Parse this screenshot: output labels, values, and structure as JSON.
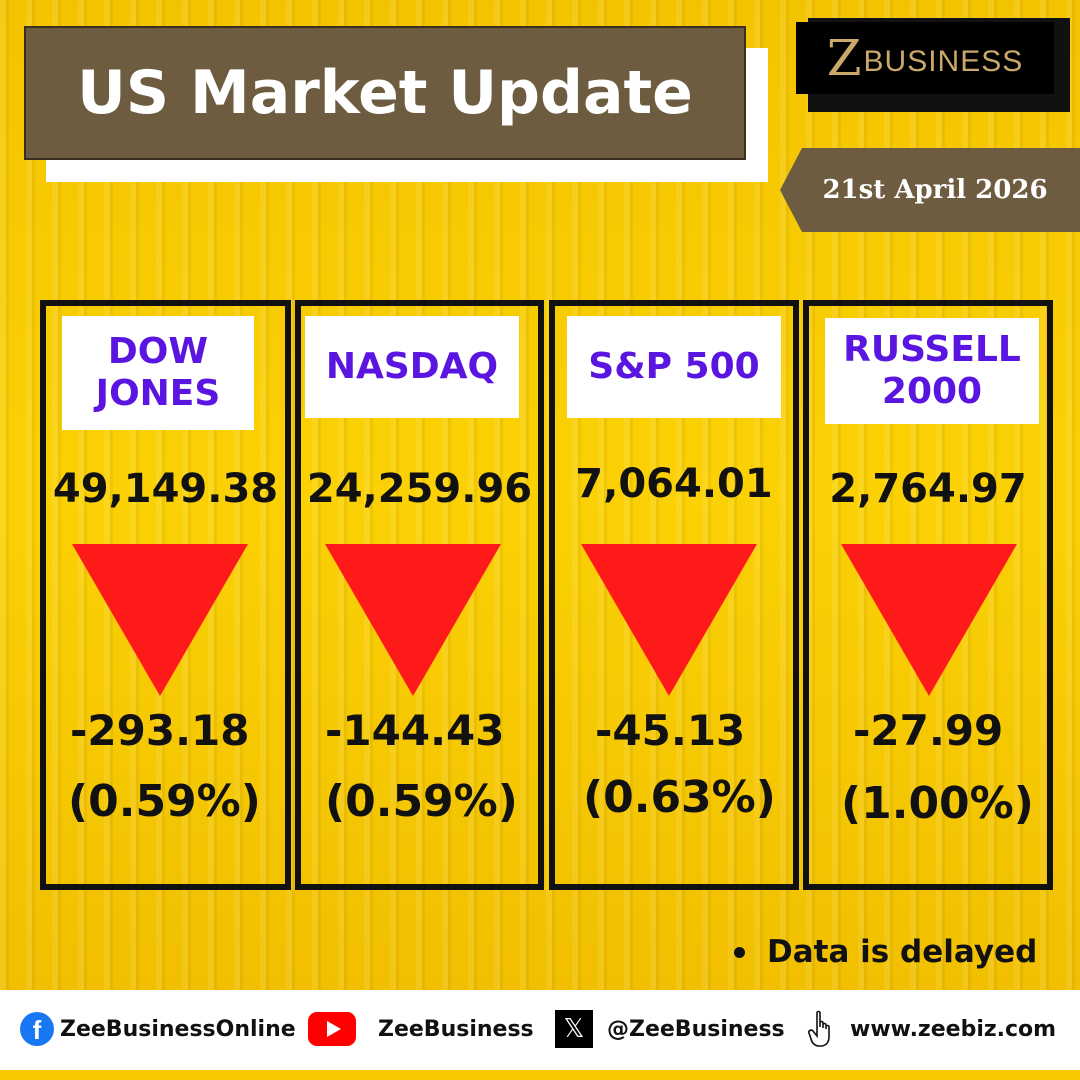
{
  "header": {
    "title": "US Market Update",
    "logo_z": "Z",
    "logo_text": "BUSINESS",
    "date": "21st April 2026"
  },
  "indices": [
    {
      "label": "DOW\nJONES",
      "value": "49,149.38",
      "change": "-293.18",
      "pct": "(0.59%)",
      "direction": "down"
    },
    {
      "label": "NASDAQ",
      "value": "24,259.96",
      "change": "-144.43",
      "pct": "(0.59%)",
      "direction": "down"
    },
    {
      "label": "S&P 500",
      "value": "7,064.01",
      "change": "-45.13",
      "pct": "(0.63%)",
      "direction": "down"
    },
    {
      "label": "RUSSELL\n2000",
      "value": "2,764.97",
      "change": "-27.99",
      "pct": "(1.00%)",
      "direction": "down"
    }
  ],
  "note": "Data is delayed",
  "footer": {
    "facebook": "ZeeBusinessOnline",
    "youtube": "ZeeBusiness",
    "x": "@ZeeBusiness",
    "website": "www.zeebiz.com"
  },
  "colors": {
    "background": "#f7c800",
    "title_box": "#6e5c40",
    "label_text": "#5a16e0",
    "down_arrow": "#ff1a1a"
  },
  "icons": [
    "facebook-icon",
    "youtube-icon",
    "x-icon",
    "pointer-hand-icon",
    "down-triangle-icon"
  ]
}
